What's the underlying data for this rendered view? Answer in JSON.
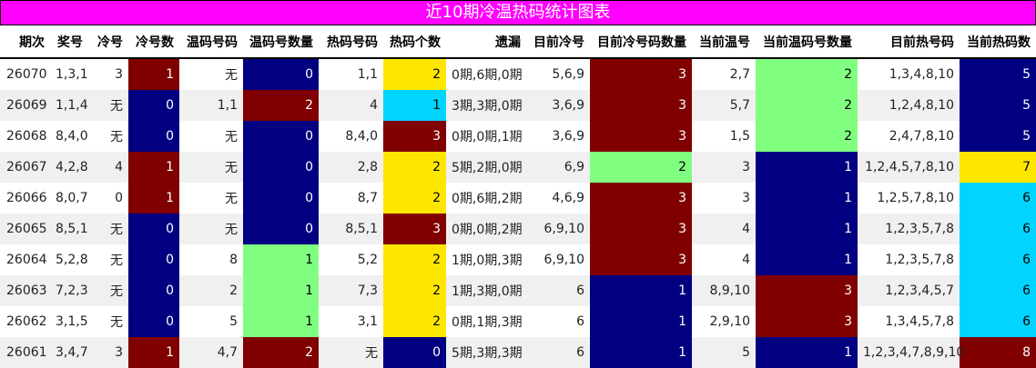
{
  "title": "近10期冷温热码统计图表",
  "palette": {
    "red": "#800000",
    "navy": "#000080",
    "yellow": "#ffe600",
    "cyan": "#00d4ff",
    "green": "#80ff80",
    "title_bg": "#ff00ff",
    "alt_row": "#f0f0f0"
  },
  "columns": [
    "期次",
    "奖号",
    "冷号",
    "冷号数",
    "温码号码",
    "温码号数量",
    "热码号码",
    "热码个数",
    "遗漏",
    "目前冷号",
    "目前冷号码数量",
    "当前温号",
    "当前温码号数量",
    "目前热号码",
    "当前热码数"
  ],
  "rows": [
    [
      "26070",
      "1,3,1",
      "3",
      "1",
      "无",
      "0",
      "1,1",
      "2",
      "0期,6期,0期",
      "5,6,9",
      "3",
      "2,7",
      "2",
      "1,3,4,8,10",
      "5"
    ],
    [
      "26069",
      "1,1,4",
      "无",
      "0",
      "1,1",
      "2",
      "4",
      "1",
      "3期,3期,0期",
      "3,6,9",
      "3",
      "5,7",
      "2",
      "1,2,4,8,10",
      "5"
    ],
    [
      "26068",
      "8,4,0",
      "无",
      "0",
      "无",
      "0",
      "8,4,0",
      "3",
      "0期,0期,1期",
      "3,6,9",
      "3",
      "1,5",
      "2",
      "2,4,7,8,10",
      "5"
    ],
    [
      "26067",
      "4,2,8",
      "4",
      "1",
      "无",
      "0",
      "2,8",
      "2",
      "5期,2期,0期",
      "6,9",
      "2",
      "3",
      "1",
      "1,2,4,5,7,8,10",
      "7"
    ],
    [
      "26066",
      "8,0,7",
      "0",
      "1",
      "无",
      "0",
      "8,7",
      "2",
      "0期,6期,2期",
      "4,6,9",
      "3",
      "3",
      "1",
      "1,2,5,7,8,10",
      "6"
    ],
    [
      "26065",
      "8,5,1",
      "无",
      "0",
      "无",
      "0",
      "8,5,1",
      "3",
      "0期,0期,2期",
      "6,9,10",
      "3",
      "4",
      "1",
      "1,2,3,5,7,8",
      "6"
    ],
    [
      "26064",
      "5,2,8",
      "无",
      "0",
      "8",
      "1",
      "5,2",
      "2",
      "1期,0期,3期",
      "6,9,10",
      "3",
      "4",
      "1",
      "1,2,3,5,7,8",
      "6"
    ],
    [
      "26063",
      "7,2,3",
      "无",
      "0",
      "2",
      "1",
      "7,3",
      "2",
      "1期,3期,0期",
      "6",
      "1",
      "8,9,10",
      "3",
      "1,2,3,4,5,7",
      "6"
    ],
    [
      "26062",
      "3,1,5",
      "无",
      "0",
      "5",
      "1",
      "3,1",
      "2",
      "0期,1期,3期",
      "6",
      "1",
      "2,9,10",
      "3",
      "1,3,4,5,7,8",
      "6"
    ],
    [
      "26061",
      "3,4,7",
      "3",
      "1",
      "4,7",
      "2",
      "无",
      "0",
      "5期,3期,3期",
      "6",
      "1",
      "5",
      "1",
      "1,2,3,4,7,8,9,10",
      "8"
    ]
  ],
  "cell_colors": [
    {
      "3": "red",
      "5": "navy",
      "7": "yellow",
      "10": "red",
      "12": "green",
      "14": "navy"
    },
    {
      "3": "navy",
      "5": "red",
      "7": "cyan",
      "10": "red",
      "12": "green",
      "14": "navy"
    },
    {
      "3": "navy",
      "5": "navy",
      "7": "red",
      "10": "red",
      "12": "green",
      "14": "navy"
    },
    {
      "3": "red",
      "5": "navy",
      "7": "yellow",
      "10": "green",
      "12": "navy",
      "14": "yellow"
    },
    {
      "3": "red",
      "5": "navy",
      "7": "yellow",
      "10": "red",
      "12": "navy",
      "14": "cyan"
    },
    {
      "3": "navy",
      "5": "navy",
      "7": "red",
      "10": "red",
      "12": "navy",
      "14": "cyan"
    },
    {
      "3": "navy",
      "5": "green",
      "7": "yellow",
      "10": "red",
      "12": "navy",
      "14": "cyan"
    },
    {
      "3": "navy",
      "5": "green",
      "7": "yellow",
      "10": "navy",
      "12": "red",
      "14": "cyan"
    },
    {
      "3": "navy",
      "5": "green",
      "7": "yellow",
      "10": "navy",
      "12": "red",
      "14": "cyan"
    },
    {
      "3": "red",
      "5": "red",
      "7": "navy",
      "10": "navy",
      "12": "navy",
      "14": "red"
    }
  ]
}
